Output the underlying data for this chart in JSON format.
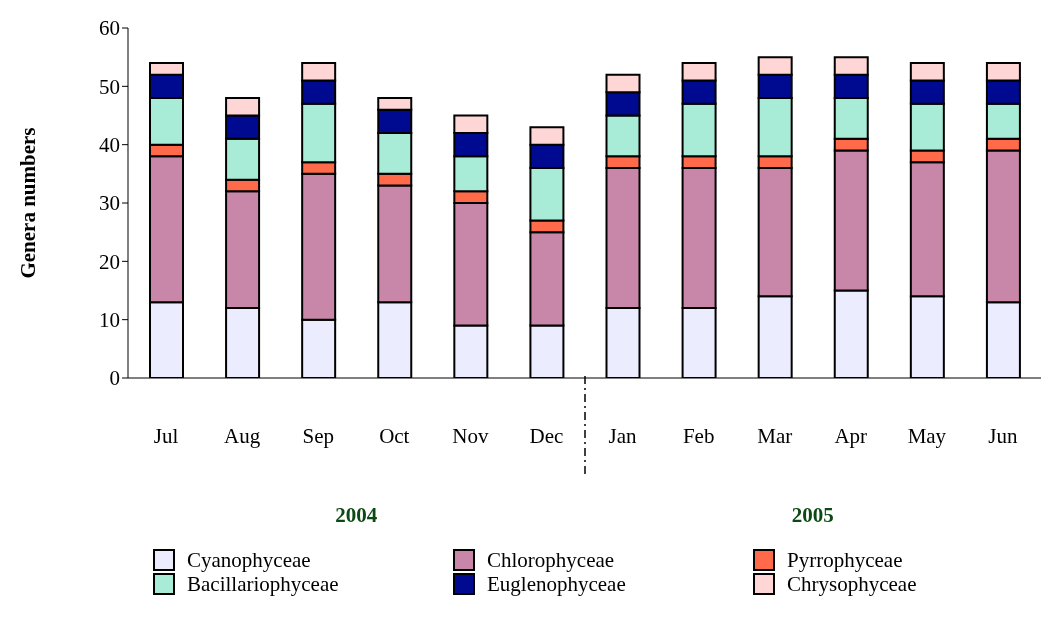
{
  "chart_data": {
    "type": "bar",
    "stacked": true,
    "ylabel": "Genera  numbers",
    "categories": [
      "Jul",
      "Aug",
      "Sep",
      "Oct",
      "Nov",
      "Dec",
      "Jan",
      "Feb",
      "Mar",
      "Apr",
      "May",
      "Jun"
    ],
    "series": [
      {
        "name": "Cyanophyceae",
        "color": "#ececff",
        "values": [
          13,
          12,
          10,
          13,
          9,
          9,
          12,
          12,
          14,
          15,
          14,
          13
        ]
      },
      {
        "name": "Chlorophyceae",
        "color": "#c887a8",
        "values": [
          25,
          20,
          25,
          20,
          21,
          16,
          24,
          24,
          22,
          24,
          23,
          26
        ]
      },
      {
        "name": "Pyrrophyceae",
        "color": "#ff6a4a",
        "values": [
          2,
          2,
          2,
          2,
          2,
          2,
          2,
          2,
          2,
          2,
          2,
          2
        ]
      },
      {
        "name": "Bacillariophyceae",
        "color": "#a8ecd8",
        "values": [
          8,
          7,
          10,
          7,
          6,
          9,
          7,
          9,
          10,
          7,
          8,
          6
        ]
      },
      {
        "name": "Euglenophyceae",
        "color": "#000a90",
        "values": [
          4,
          4,
          4,
          4,
          4,
          4,
          4,
          4,
          4,
          4,
          4,
          4
        ]
      },
      {
        "name": "Chrysophyceae",
        "color": "#ffd6d6",
        "values": [
          2,
          3,
          3,
          2,
          3,
          3,
          3,
          3,
          3,
          3,
          3,
          3
        ]
      }
    ],
    "ylim": [
      0,
      60
    ],
    "yticks": [
      0,
      10,
      20,
      30,
      40,
      50,
      60
    ],
    "legend": "bottom",
    "annotations": [
      "2004",
      "2005"
    ]
  }
}
